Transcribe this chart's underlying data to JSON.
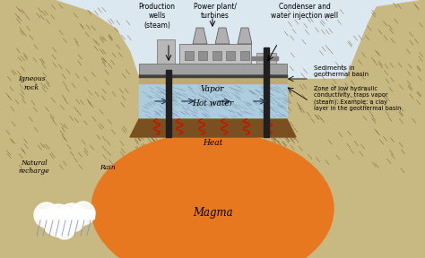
{
  "bg_color": "#c8b882",
  "sky_color": "#dce8f0",
  "water_color": "#a8d0e8",
  "magma_color": "#e87820",
  "dark_rock_color": "#7a5020",
  "sediment_top_color": "#c0aa70",
  "platform_color": "#909090",
  "plant_color": "#b8b8b8",
  "well_color": "#202020",
  "labels": {
    "natural_recharge": "Natural\nrecharge",
    "rain": "Rain",
    "production_wells": "Production\nwells\n(steam)",
    "power_plant": "Power plant/\nturbines",
    "condenser": "Condenser and\nwater injection well",
    "vapor": "Vapor",
    "hot_water": "Hot water",
    "heat": "Heat",
    "magma": "Magma",
    "igneous_rock": "Igneous\nrock",
    "sediments": "Sediments in\ngeothermal basin",
    "zone_low": "Zone of low hydraulic\nconductivity, traps vapor\n(steam). Example: a clay\nlayer in the geothermal basin"
  },
  "figsize": [
    4.74,
    2.88
  ],
  "dpi": 100
}
